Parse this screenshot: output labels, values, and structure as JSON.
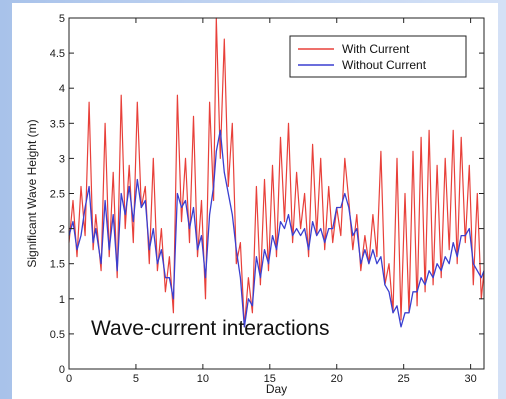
{
  "chart_data": {
    "type": "line",
    "xlabel": "Day",
    "ylabel": "Significant Wave Height (m)",
    "xlim": [
      0,
      31
    ],
    "ylim": [
      0,
      5
    ],
    "x_ticks": [
      "0",
      "5",
      "10",
      "15",
      "20",
      "25",
      "30"
    ],
    "y_ticks": [
      "0",
      "0.5",
      "1",
      "1.5",
      "2",
      "2.5",
      "3",
      "3.5",
      "4",
      "4.5",
      "5"
    ],
    "legend_position": "top-right",
    "grid": false,
    "annotation": "Wave-current interactions",
    "series": [
      {
        "name": "With Current",
        "color": "#e8403a",
        "x": [
          0,
          0.3,
          0.6,
          0.9,
          1.2,
          1.5,
          1.8,
          2.0,
          2.4,
          2.7,
          3.0,
          3.3,
          3.6,
          3.9,
          4.2,
          4.5,
          4.8,
          5.1,
          5.4,
          5.7,
          6.0,
          6.3,
          6.6,
          6.9,
          7.2,
          7.5,
          7.8,
          8.1,
          8.4,
          8.7,
          9.0,
          9.3,
          9.6,
          9.9,
          10.2,
          10.5,
          10.8,
          11.0,
          11.3,
          11.6,
          11.9,
          12.2,
          12.5,
          12.8,
          13.1,
          13.4,
          13.7,
          14.0,
          14.3,
          14.6,
          14.9,
          15.2,
          15.5,
          15.8,
          16.1,
          16.4,
          16.7,
          17.0,
          17.3,
          17.6,
          17.9,
          18.2,
          18.5,
          18.8,
          19.1,
          19.4,
          19.7,
          20.0,
          20.3,
          20.6,
          20.9,
          21.2,
          21.5,
          21.8,
          22.1,
          22.4,
          22.7,
          23.0,
          23.3,
          23.6,
          23.9,
          24.2,
          24.5,
          24.8,
          25.1,
          25.4,
          25.7,
          26.0,
          26.3,
          26.6,
          26.9,
          27.2,
          27.5,
          27.8,
          28.1,
          28.4,
          28.7,
          29.0,
          29.3,
          29.6,
          29.9,
          30.2,
          30.5,
          30.8,
          31.0
        ],
        "values": [
          1.8,
          2.4,
          1.6,
          2.6,
          1.9,
          3.8,
          1.7,
          2.2,
          1.4,
          3.5,
          1.6,
          2.8,
          1.3,
          3.9,
          2.0,
          2.9,
          1.8,
          3.8,
          2.3,
          2.6,
          1.5,
          3.0,
          1.4,
          2.0,
          1.1,
          1.6,
          0.8,
          3.9,
          2.1,
          3.0,
          1.8,
          3.6,
          1.6,
          2.4,
          1.0,
          3.8,
          2.4,
          5.0,
          3.0,
          4.7,
          2.6,
          3.5,
          1.5,
          1.8,
          0.6,
          1.3,
          0.8,
          2.6,
          1.2,
          2.7,
          1.4,
          2.9,
          1.6,
          3.3,
          2.1,
          3.5,
          1.8,
          2.8,
          2.0,
          2.5,
          1.6,
          3.2,
          1.9,
          3.0,
          1.7,
          2.6,
          1.8,
          2.3,
          1.9,
          3.0,
          2.4,
          1.7,
          2.2,
          1.4,
          1.9,
          1.5,
          2.2,
          1.6,
          3.1,
          1.2,
          1.5,
          0.8,
          3.0,
          0.7,
          2.5,
          0.8,
          3.1,
          0.9,
          3.3,
          1.1,
          3.4,
          1.2,
          2.9,
          1.3,
          3.0,
          1.7,
          3.4,
          1.5,
          3.3,
          1.8,
          2.9,
          1.2,
          2.5,
          1.0,
          1.4
        ]
      },
      {
        "name": "Without Current",
        "color": "#3a3fd0",
        "x": [
          0,
          0.3,
          0.6,
          0.9,
          1.2,
          1.5,
          1.8,
          2.0,
          2.4,
          2.7,
          3.0,
          3.3,
          3.6,
          3.9,
          4.2,
          4.5,
          4.8,
          5.1,
          5.4,
          5.7,
          6.0,
          6.3,
          6.6,
          6.9,
          7.2,
          7.5,
          7.8,
          8.1,
          8.4,
          8.7,
          9.0,
          9.3,
          9.6,
          9.9,
          10.2,
          10.5,
          10.8,
          11.0,
          11.3,
          11.6,
          11.9,
          12.2,
          12.5,
          12.8,
          13.1,
          13.4,
          13.7,
          14.0,
          14.3,
          14.6,
          14.9,
          15.2,
          15.5,
          15.8,
          16.1,
          16.4,
          16.7,
          17.0,
          17.3,
          17.6,
          17.9,
          18.2,
          18.5,
          18.8,
          19.1,
          19.4,
          19.7,
          20.0,
          20.3,
          20.6,
          20.9,
          21.2,
          21.5,
          21.8,
          22.1,
          22.4,
          22.7,
          23.0,
          23.3,
          23.6,
          23.9,
          24.2,
          24.5,
          24.8,
          25.1,
          25.4,
          25.7,
          26.0,
          26.3,
          26.6,
          26.9,
          27.2,
          27.5,
          27.8,
          28.1,
          28.4,
          28.7,
          29.0,
          29.3,
          29.6,
          29.9,
          30.2,
          30.5,
          30.8,
          31.0
        ],
        "values": [
          1.9,
          2.1,
          1.7,
          1.9,
          2.3,
          2.6,
          1.8,
          2.0,
          1.5,
          2.4,
          1.7,
          2.2,
          1.4,
          2.5,
          2.2,
          2.6,
          2.1,
          2.7,
          2.3,
          2.4,
          1.7,
          2.0,
          1.5,
          1.7,
          1.3,
          1.3,
          1.0,
          2.5,
          2.3,
          2.4,
          2.0,
          2.3,
          1.7,
          1.9,
          1.3,
          2.2,
          2.6,
          3.1,
          3.4,
          2.8,
          2.5,
          2.2,
          1.7,
          1.3,
          0.6,
          1.0,
          0.9,
          1.6,
          1.3,
          1.7,
          1.5,
          1.9,
          1.7,
          2.1,
          2.0,
          2.2,
          1.9,
          2.0,
          1.9,
          2.0,
          1.7,
          2.1,
          1.9,
          2.0,
          1.8,
          2.0,
          2.0,
          2.3,
          2.3,
          2.5,
          2.3,
          1.9,
          2.0,
          1.5,
          1.7,
          1.5,
          1.7,
          1.5,
          1.6,
          1.2,
          1.1,
          0.8,
          0.9,
          0.6,
          0.8,
          0.8,
          1.1,
          1.1,
          1.3,
          1.2,
          1.4,
          1.3,
          1.5,
          1.4,
          1.6,
          1.5,
          1.8,
          1.6,
          1.9,
          1.9,
          2.0,
          1.5,
          1.4,
          1.3,
          1.4
        ]
      }
    ]
  }
}
